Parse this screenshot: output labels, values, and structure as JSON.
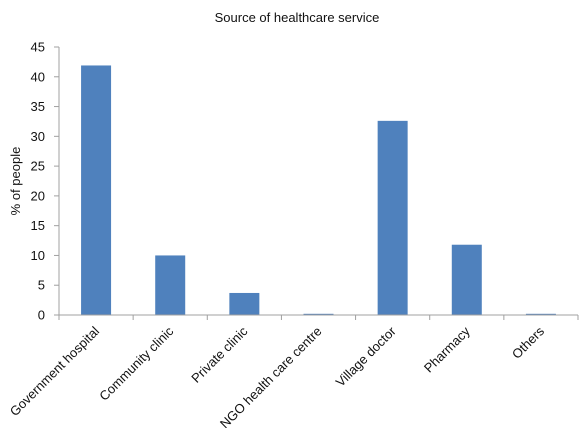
{
  "chart_data": {
    "type": "bar",
    "title": "Source of healthcare service",
    "xlabel": "",
    "ylabel": "% of people",
    "categories": [
      "Government hospital",
      "Community clinic",
      "Private clinic",
      "NGO health care centre",
      "Village doctor",
      "Pharmacy",
      "Others"
    ],
    "values": [
      41.9,
      10.0,
      3.7,
      0.2,
      32.6,
      11.8,
      0.2
    ],
    "yticks": [
      "0",
      "5",
      "10",
      "15",
      "20",
      "25",
      "30",
      "35",
      "40",
      "45"
    ],
    "ylim": [
      0,
      45
    ],
    "bar_color": "#4f81bd",
    "axis_color": "#a0a0a0",
    "grid": false,
    "legend": "none"
  }
}
